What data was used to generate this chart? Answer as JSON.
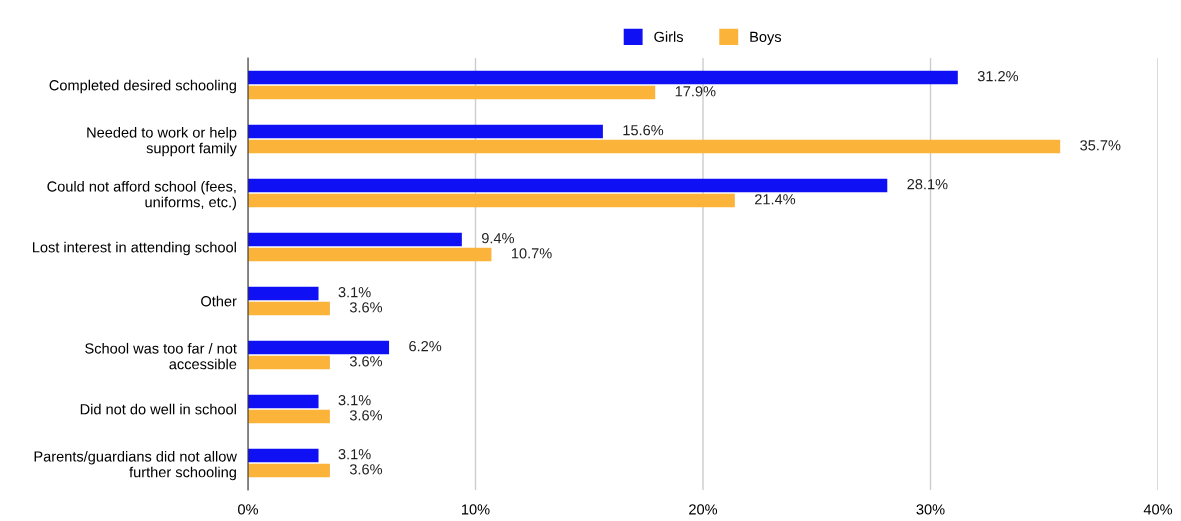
{
  "chart_data": {
    "type": "bar",
    "orientation": "horizontal",
    "categories": [
      "Completed desired schooling",
      "Needed to work or help\nsupport family",
      "Could not afford school (fees,\nuniforms, etc.)",
      "Lost interest in attending school",
      "Other",
      "School was too far / not\naccessible",
      "Did not do well in school",
      "Parents/guardians did not allow\nfurther schooling"
    ],
    "series": [
      {
        "name": "Girls",
        "color": "#1010f5",
        "values": [
          31.2,
          15.6,
          28.1,
          9.4,
          3.1,
          6.2,
          3.1,
          3.1
        ],
        "value_labels": [
          "31.2%",
          "15.6%",
          "28.1%",
          "9.4%",
          "3.1%",
          "6.2%",
          "3.1%",
          "3.1%"
        ]
      },
      {
        "name": "Boys",
        "color": "#fbb33a",
        "values": [
          17.9,
          35.7,
          21.4,
          10.7,
          3.6,
          3.6,
          3.6,
          3.6
        ],
        "value_labels": [
          "17.9%",
          "35.7%",
          "21.4%",
          "10.7%",
          "3.6%",
          "3.6%",
          "3.6%",
          "3.6%"
        ]
      }
    ],
    "xlim": [
      0,
      40
    ],
    "xticks": [
      {
        "value": 0,
        "label": "0%"
      },
      {
        "value": 10,
        "label": "10%"
      },
      {
        "value": 20,
        "label": "20%"
      },
      {
        "value": 30,
        "label": "30%"
      },
      {
        "value": 40,
        "label": "40%"
      }
    ],
    "grid": "x",
    "legend": "top"
  }
}
